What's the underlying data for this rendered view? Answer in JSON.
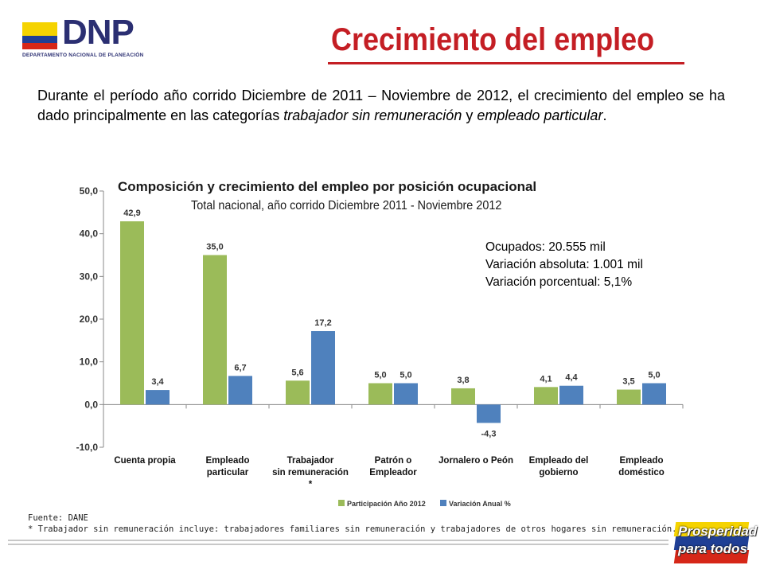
{
  "logo": {
    "name": "DNP",
    "subtitle": "DEPARTAMENTO NACIONAL DE PLANEACIÓN",
    "colors": [
      "#f5d300",
      "#1f3f95",
      "#d62718"
    ]
  },
  "slide_title": "Crecimiento del empleo",
  "intro": {
    "part1": "Durante el período año corrido Diciembre de 2011 – Noviembre de 2012, el crecimiento del empleo se ha dado principalmente en las categorías ",
    "italic1": "trabajador sin remuneración",
    "part2": " y ",
    "italic2": "empleado particular",
    "part3": "."
  },
  "summary": {
    "line1": "Ocupados: 20.555 mil",
    "line2": "Variación absoluta: 1.001 mil",
    "line3": "Variación porcentual: 5,1%"
  },
  "chart_data": {
    "type": "bar",
    "title": "Composición y crecimiento del empleo por posición ocupacional",
    "subtitle": "Total nacional, año corrido Diciembre  2011 - Noviembre 2012",
    "categories": [
      [
        "Cuenta propia"
      ],
      [
        "Empleado",
        "particular"
      ],
      [
        "Trabajador",
        "sin remuneración",
        "*"
      ],
      [
        "Patrón o",
        "Empleador"
      ],
      [
        "Jornalero o Peón"
      ],
      [
        "Empleado del",
        "gobierno"
      ],
      [
        "Empleado",
        "doméstico"
      ]
    ],
    "series": [
      {
        "name": "Participación  Año 2012",
        "color": "#9bbb59",
        "values": [
          42.9,
          35.0,
          5.6,
          5.0,
          3.8,
          4.1,
          3.5
        ],
        "labels": [
          "42,9",
          "35,0",
          "5,6",
          "5,0",
          "3,8",
          "4,1",
          "3,5"
        ]
      },
      {
        "name": "Variación Anual %",
        "color": "#4f81bd",
        "values": [
          3.4,
          6.7,
          17.2,
          5.0,
          -4.3,
          4.4,
          5.0
        ],
        "labels": [
          "3,4",
          "6,7",
          "17,2",
          "5,0",
          "-4,3",
          "4,4",
          "5,0"
        ]
      }
    ],
    "yticks": [
      -10,
      0,
      10,
      20,
      30,
      40,
      50
    ],
    "ytick_labels": [
      "-10,0",
      "0,0",
      "10,0",
      "20,0",
      "30,0",
      "40,0",
      "50,0"
    ],
    "ylim": [
      -10,
      50
    ],
    "legend_position": "bottom"
  },
  "footer": {
    "source": "Fuente: DANE",
    "note": "* Trabajador sin remuneración incluye: trabajadores familiares sin remuneración y trabajadores de otros hogares sin remuneración."
  },
  "badge": {
    "line1": "Prosperidad",
    "line2": "para todos",
    "colors": [
      "#f5d300",
      "#1f3f95",
      "#d62718"
    ]
  }
}
